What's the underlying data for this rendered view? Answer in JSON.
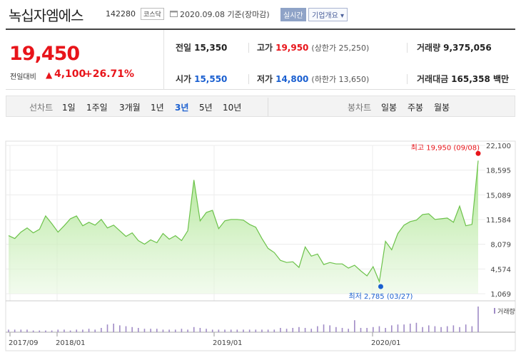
{
  "header": {
    "title": "녹십자엠에스",
    "code": "142280",
    "market": "코스닥",
    "date": "2020.09.08 기준(장마감)",
    "realtime": "실시간",
    "company_info": "기업개요 ▾"
  },
  "summary": {
    "price": "19,450",
    "change_label": "전일대비",
    "change_arrow": "▲",
    "change_value": "4,100",
    "change_pct": "+26.71%",
    "prev_close": {
      "label": "전일",
      "value": "15,350"
    },
    "high": {
      "label": "고가",
      "value": "19,950",
      "sub": "(상한가 25,250)"
    },
    "volume": {
      "label": "거래량",
      "value": "9,375,056"
    },
    "open": {
      "label": "시가",
      "value": "15,550"
    },
    "low": {
      "label": "저가",
      "value": "14,800",
      "sub": "(하한가 13,650)"
    },
    "amount": {
      "label": "거래대금",
      "value": "165,358 백만"
    }
  },
  "tabs": {
    "line_label": "선차트",
    "periods": [
      "1일",
      "1주일",
      "3개월",
      "1년",
      "3년",
      "5년",
      "10년"
    ],
    "active": "3년",
    "candle_label": "봉차트",
    "candles": [
      "일봉",
      "주봉",
      "월봉"
    ]
  },
  "chart_data": {
    "type": "area",
    "y_ticks": [
      "22,100",
      "18,595",
      "15,089",
      "11,584",
      "8,079",
      "4,574",
      "1,069"
    ],
    "ylim": [
      1069,
      22100
    ],
    "x_ticks": [
      "2017/09",
      "2018/01",
      "2019/01",
      "2020/01"
    ],
    "max_annotation": "최고 19,950 (09/08)",
    "min_annotation": "최저 2,785 (03/27)",
    "volume_legend": "거래량",
    "series": [
      {
        "values": [
          9300,
          8900,
          9800,
          10400,
          9700,
          10200,
          12100,
          11000,
          9800,
          10700,
          11700,
          12100,
          10700,
          11200,
          10800,
          11600,
          10400,
          10800,
          10000,
          9200,
          9700,
          8600,
          8100,
          8700,
          8300,
          9600,
          8800,
          9300,
          8600,
          10000,
          17200,
          11400,
          12600,
          12900,
          10300,
          11400,
          11600,
          11600,
          11500,
          10900,
          10500,
          8900,
          7500,
          6900,
          5800,
          5500,
          5600,
          4800,
          7700,
          6400,
          6700,
          5200,
          5500,
          5300,
          5300,
          4700,
          5100,
          4300,
          3600,
          4900,
          2785,
          8500,
          7300,
          9600,
          10800,
          11300,
          11500,
          12300,
          12400,
          11600,
          11700,
          11800,
          11200,
          13500,
          10700,
          10900,
          19950
        ]
      }
    ],
    "volume": [
      3,
      3,
      3,
      3,
      2,
      2,
      2,
      2,
      3,
      3,
      2,
      3,
      3,
      4,
      3,
      5,
      9,
      10,
      8,
      7,
      6,
      5,
      4,
      4,
      4,
      3,
      3,
      3,
      4,
      3,
      6,
      5,
      4,
      3,
      3,
      3,
      3,
      3,
      3,
      3,
      3,
      3,
      3,
      3,
      5,
      4,
      5,
      6,
      5,
      4,
      7,
      9,
      8,
      6,
      5,
      4,
      14,
      5,
      5,
      6,
      7,
      5,
      8,
      9,
      9,
      10,
      11,
      6,
      8,
      7,
      6,
      7,
      8,
      6,
      9,
      7,
      30
    ]
  }
}
